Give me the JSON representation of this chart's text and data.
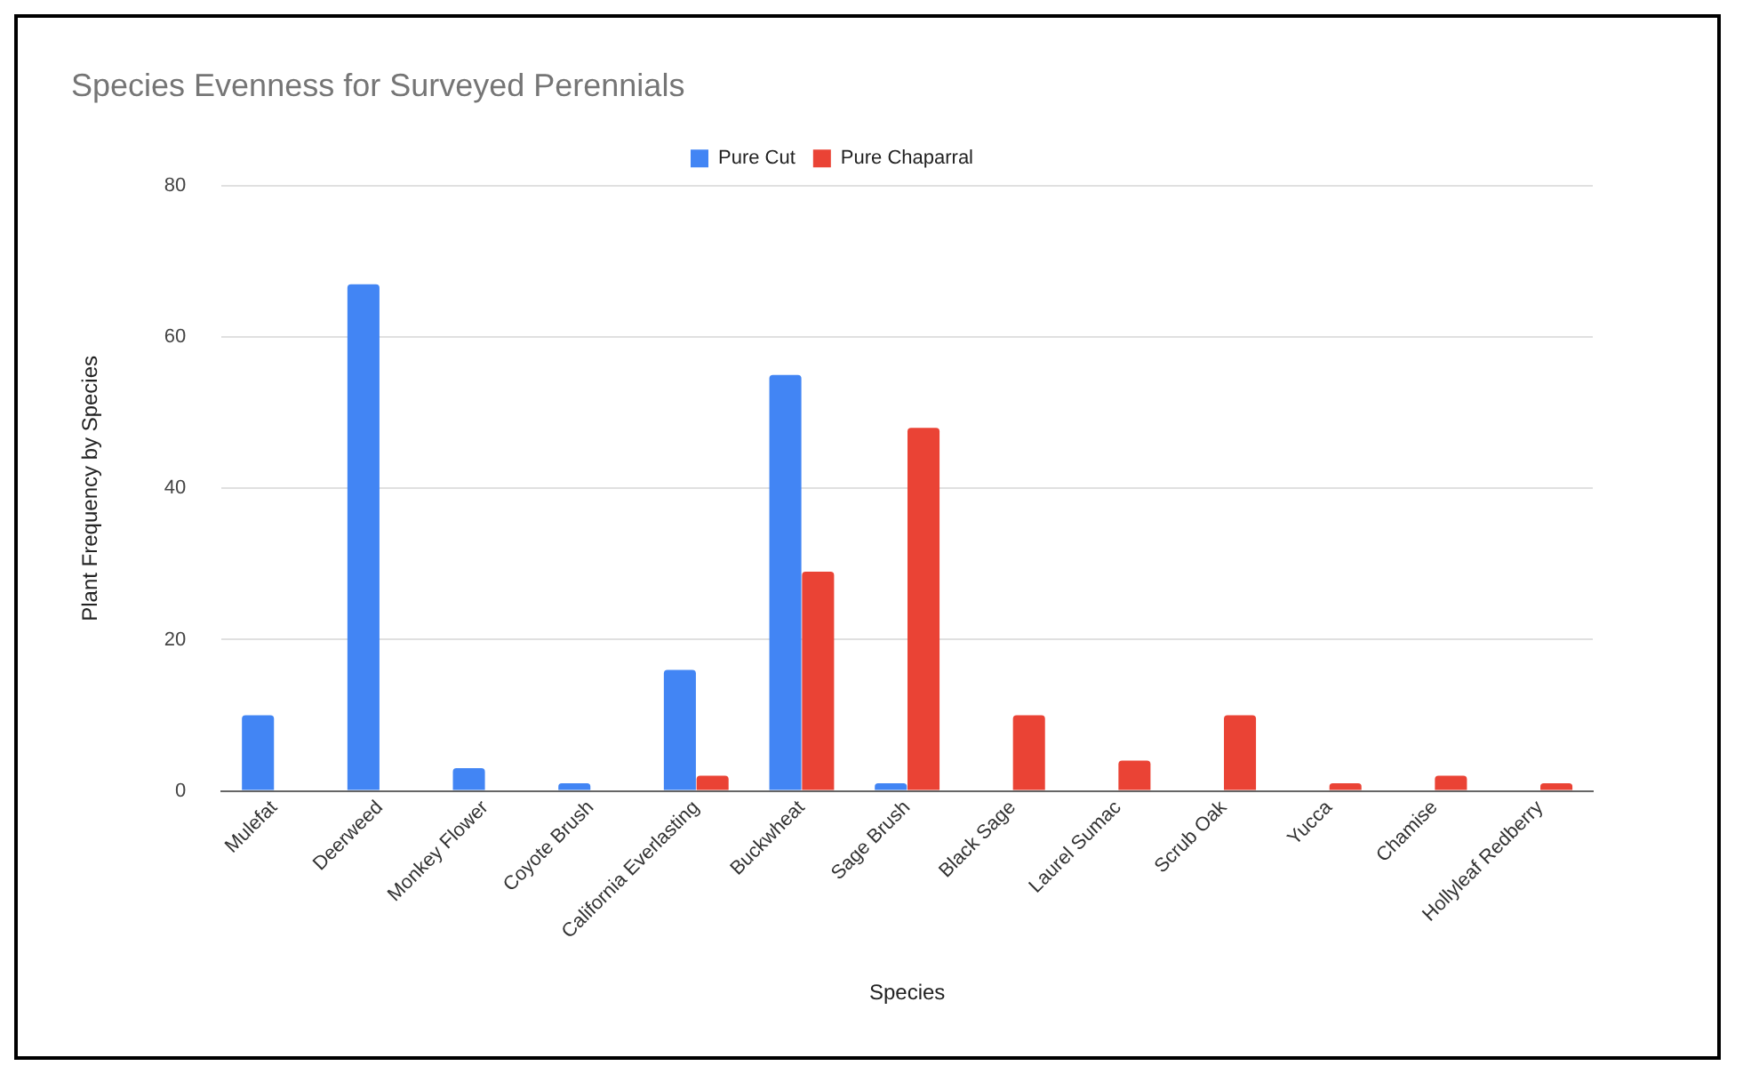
{
  "chart_data": {
    "type": "bar",
    "title": "Species Evenness for Surveyed Perennials",
    "xlabel": "Species",
    "ylabel": "Plant Frequency by Species",
    "categories": [
      "Mulefat",
      "Deerweed",
      "Monkey Flower",
      "Coyote Brush",
      "California Everlasting",
      "Buckwheat",
      "Sage Brush",
      "Black Sage",
      "Laurel Sumac",
      "Scrub Oak",
      "Yucca",
      "Chamise",
      "Hollyleaf Redberry"
    ],
    "series": [
      {
        "name": "Pure Cut",
        "color": "#4285f4",
        "values": [
          10,
          67,
          3,
          1,
          16,
          55,
          1,
          0,
          0,
          0,
          0,
          0,
          0
        ]
      },
      {
        "name": "Pure Chaparral",
        "color": "#ea4335",
        "values": [
          0,
          0,
          0,
          0,
          2,
          29,
          48,
          10,
          4,
          10,
          1,
          2,
          1
        ]
      }
    ],
    "ylim": [
      0,
      80
    ],
    "yticks": [
      0,
      20,
      40,
      60,
      80
    ],
    "grid": "y",
    "legend": "top"
  }
}
